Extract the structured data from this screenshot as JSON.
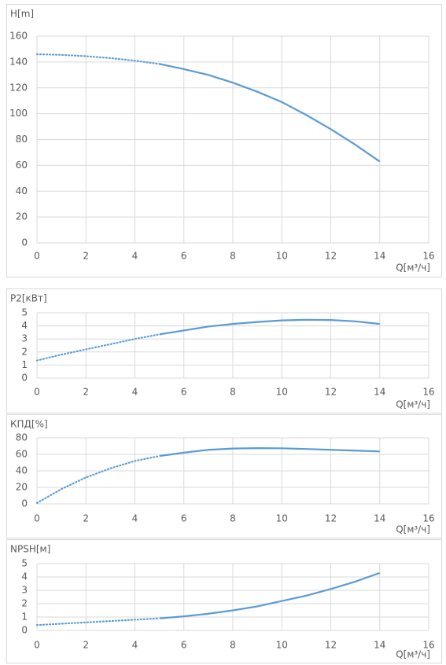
{
  "chart_data": [
    {
      "type": "line",
      "y_label": "H[m]",
      "x_label": "Q[м³/ч]",
      "x": [
        0,
        1,
        2,
        3,
        4,
        5,
        6,
        7,
        8,
        9,
        10,
        11,
        12,
        13,
        14
      ],
      "series": [
        {
          "color": "#5b9bd5",
          "dash": "dotted",
          "values": [
            146,
            145.5,
            144.5,
            143,
            141,
            138.5,
            null,
            null,
            null,
            null,
            null,
            null,
            null,
            null,
            null
          ]
        },
        {
          "color": "#5b9bd5",
          "values": [
            null,
            null,
            null,
            null,
            null,
            138.5,
            134.5,
            130,
            124,
            117,
            109,
            99,
            88,
            76,
            63
          ]
        }
      ],
      "xlim": [
        0,
        16
      ],
      "xticks": [
        0,
        2,
        4,
        6,
        8,
        10,
        12,
        14,
        16
      ],
      "ylim": [
        0,
        160
      ],
      "yticks": [
        0,
        20,
        40,
        60,
        80,
        100,
        120,
        140,
        160
      ],
      "grid": true
    },
    {
      "type": "line",
      "y_label": "P2[кВт]",
      "x_label": "Q[м³/ч]",
      "x": [
        0,
        1,
        2,
        3,
        4,
        5,
        6,
        7,
        8,
        9,
        10,
        11,
        12,
        13,
        14
      ],
      "series": [
        {
          "color": "#5b9bd5",
          "dash": "dotted",
          "values": [
            1.35,
            1.8,
            2.2,
            2.6,
            3.0,
            3.35,
            null,
            null,
            null,
            null,
            null,
            null,
            null,
            null,
            null
          ]
        },
        {
          "color": "#5b9bd5",
          "values": [
            null,
            null,
            null,
            null,
            null,
            3.35,
            3.65,
            3.95,
            4.15,
            4.3,
            4.42,
            4.47,
            4.45,
            4.35,
            4.15
          ]
        }
      ],
      "xlim": [
        0,
        16
      ],
      "xticks": [
        0,
        2,
        4,
        6,
        8,
        10,
        12,
        14,
        16
      ],
      "ylim": [
        0,
        5
      ],
      "yticks": [
        0,
        1,
        2,
        3,
        4,
        5
      ],
      "grid": true
    },
    {
      "type": "line",
      "y_label": "КПД[%]",
      "x_label": "Q[м³/ч]",
      "x": [
        0,
        1,
        2,
        3,
        4,
        5,
        6,
        7,
        8,
        9,
        10,
        11,
        12,
        13,
        14
      ],
      "series": [
        {
          "color": "#5b9bd5",
          "dash": "dotted",
          "values": [
            1,
            18,
            32,
            43,
            52,
            58,
            null,
            null,
            null,
            null,
            null,
            null,
            null,
            null,
            null
          ]
        },
        {
          "color": "#5b9bd5",
          "values": [
            null,
            null,
            null,
            null,
            null,
            58,
            62,
            65.5,
            67,
            67.5,
            67.3,
            66.5,
            65.5,
            64.5,
            63.5
          ]
        }
      ],
      "xlim": [
        0,
        16
      ],
      "xticks": [
        0,
        2,
        4,
        6,
        8,
        10,
        12,
        14,
        16
      ],
      "ylim": [
        0,
        80
      ],
      "yticks": [
        0,
        20,
        40,
        60,
        80
      ],
      "grid": true
    },
    {
      "type": "line",
      "y_label": "NPSH[м]",
      "x_label": "Q[м³/ч]",
      "x": [
        0,
        1,
        2,
        3,
        4,
        5,
        6,
        7,
        8,
        9,
        10,
        11,
        12,
        13,
        14
      ],
      "series": [
        {
          "color": "#5b9bd5",
          "dash": "dotted",
          "values": [
            0.4,
            0.5,
            0.6,
            0.7,
            0.8,
            0.9,
            null,
            null,
            null,
            null,
            null,
            null,
            null,
            null,
            null
          ]
        },
        {
          "color": "#5b9bd5",
          "values": [
            null,
            null,
            null,
            null,
            null,
            0.9,
            1.05,
            1.25,
            1.5,
            1.8,
            2.2,
            2.6,
            3.1,
            3.65,
            4.3
          ]
        }
      ],
      "xlim": [
        0,
        16
      ],
      "xticks": [
        0,
        2,
        4,
        6,
        8,
        10,
        12,
        14,
        16
      ],
      "ylim": [
        0,
        5
      ],
      "yticks": [
        0,
        1,
        2,
        3,
        4,
        5
      ],
      "grid": true
    }
  ]
}
